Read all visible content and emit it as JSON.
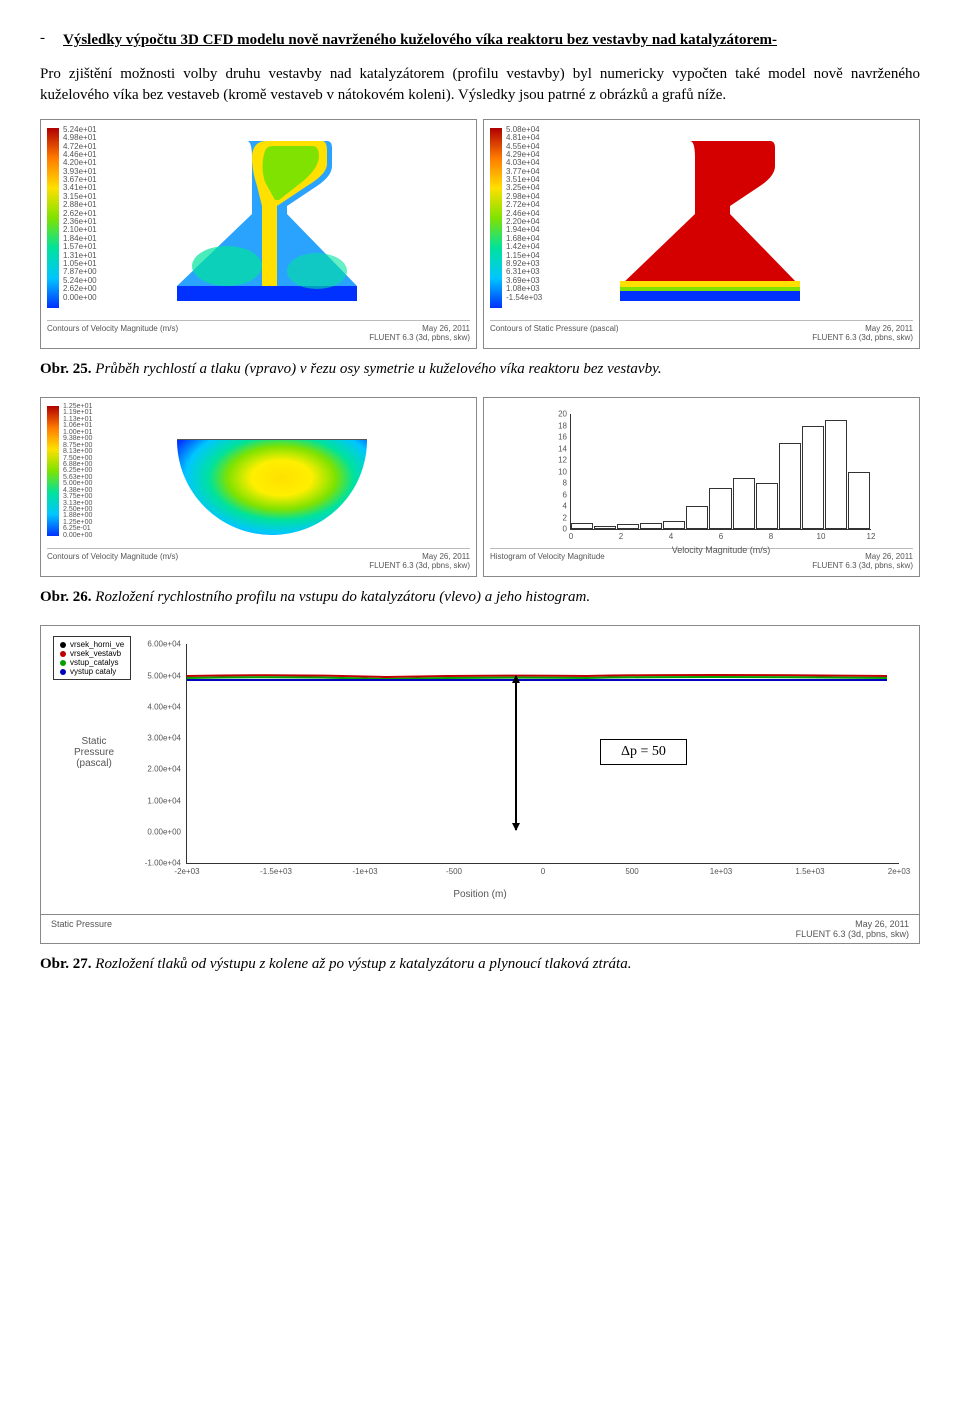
{
  "heading": "Výsledky výpočtu 3D CFD modelu nově navrženého kuželového víka reaktoru bez vestavby nad katalyzátorem-",
  "paragraph": "Pro zjištění možnosti volby druhu vestavby nad katalyzátorem (profilu vestavby) byl numericky vypočten také model nově navrženého kuželového víka bez vestaveb (kromě vestaveb v nátokovém koleni). Výsledky jsou patrné z obrázků a grafů níže.",
  "fig25": {
    "left": {
      "footer_left": "Contours of Velocity Magnitude (m/s)",
      "footer_right_1": "May 26, 2011",
      "footer_right_2": "FLUENT 6.3 (3d, pbns, skw)",
      "cb_labels": "5.24e+01\n4.98e+01\n4.72e+01\n4.46e+01\n4.20e+01\n3.93e+01\n3.67e+01\n3.41e+01\n3.15e+01\n2.88e+01\n2.62e+01\n2.36e+01\n2.10e+01\n1.84e+01\n1.57e+01\n1.31e+01\n1.05e+01\n7.87e+00\n5.24e+00\n2.62e+00\n0.00e+00"
    },
    "right": {
      "footer_left": "Contours of Static Pressure (pascal)",
      "footer_right_1": "May 26, 2011",
      "footer_right_2": "FLUENT 6.3 (3d, pbns, skw)",
      "cb_labels": "5.08e+04\n4.81e+04\n4.55e+04\n4.29e+04\n4.03e+04\n3.77e+04\n3.51e+04\n3.25e+04\n2.98e+04\n2.72e+04\n2.46e+04\n2.20e+04\n1.94e+04\n1.68e+04\n1.42e+04\n1.15e+04\n8.92e+03\n6.31e+03\n3.69e+03\n1.08e+03\n-1.54e+03"
    }
  },
  "caption25_bold": "Obr. 25.",
  "caption25_italic": "Průběh rychlostí a tlaku (vpravo) v řezu osy symetrie u kuželového víka reaktoru bez vestavby.",
  "fig26": {
    "left": {
      "footer_left": "Contours of Velocity Magnitude (m/s)",
      "footer_right_1": "May 26, 2011",
      "footer_right_2": "FLUENT 6.3 (3d, pbns, skw)",
      "cb_labels": "1.25e+01\n1.19e+01\n1.13e+01\n1.06e+01\n1.00e+01\n9.38e+00\n8.75e+00\n8.13e+00\n7.50e+00\n6.88e+00\n6.25e+00\n5.63e+00\n5.00e+00\n4.38e+00\n3.75e+00\n3.13e+00\n2.50e+00\n1.88e+00\n1.25e+00\n6.25e-01\n0.00e+00"
    },
    "right": {
      "footer_left": "Histogram of Velocity Magnitude",
      "footer_right_1": "May 26, 2011",
      "footer_right_2": "FLUENT 6.3 (3d, pbns, skw)",
      "xlabel": "Velocity Magnitude (m/s)",
      "y_ticks": [
        "0",
        "2",
        "4",
        "6",
        "8",
        "10",
        "12",
        "14",
        "16",
        "18",
        "20"
      ],
      "x_ticks": [
        "0",
        "2",
        "4",
        "6",
        "8",
        "10",
        "12"
      ],
      "bars_pct": [
        5,
        3,
        4,
        5,
        7,
        20,
        36,
        44,
        40,
        75,
        90,
        95,
        50
      ]
    }
  },
  "caption26_bold": "Obr. 26.",
  "caption26_italic": "Rozložení rychlostního profilu na vstupu do katalyzátoru (vlevo) a jeho histogram.",
  "pressure_chart": {
    "legend": [
      {
        "label": "vrsek_horni_ve",
        "color": "#000000"
      },
      {
        "label": "vrsek_vestavb",
        "color": "#c00000"
      },
      {
        "label": "vstup_catalys",
        "color": "#00a000"
      },
      {
        "label": "vystup cataly",
        "color": "#0000c0"
      }
    ],
    "ylabel1": "Static",
    "ylabel2": "Pressure",
    "ylabel3": "(pascal)",
    "xlabel": "Position (m)",
    "y_ticks": [
      "-1.00e+04",
      "0.00e+00",
      "1.00e+04",
      "2.00e+04",
      "3.00e+04",
      "4.00e+04",
      "5.00e+04",
      "6.00e+04"
    ],
    "x_ticks": [
      "-2e+03",
      "-1.5e+03",
      "-1e+03",
      "-500",
      "0",
      "500",
      "1e+03",
      "1.5e+03",
      "2e+03"
    ],
    "dp_label": "Δp = 50",
    "footer_left": "Static Pressure",
    "footer_right_1": "May 26, 2011",
    "footer_right_2": "FLUENT 6.3 (3d, pbns, skw)",
    "colors": {
      "top_line_red": "#c00000",
      "top_line_green": "#00a000",
      "bottom_line_blue": "#0000c0"
    }
  },
  "caption27_bold": "Obr. 27.",
  "caption27_italic": "Rozložení tlaků od výstupu z kolene až po výstup z katalyzátoru a plynoucí tlaková ztráta."
}
